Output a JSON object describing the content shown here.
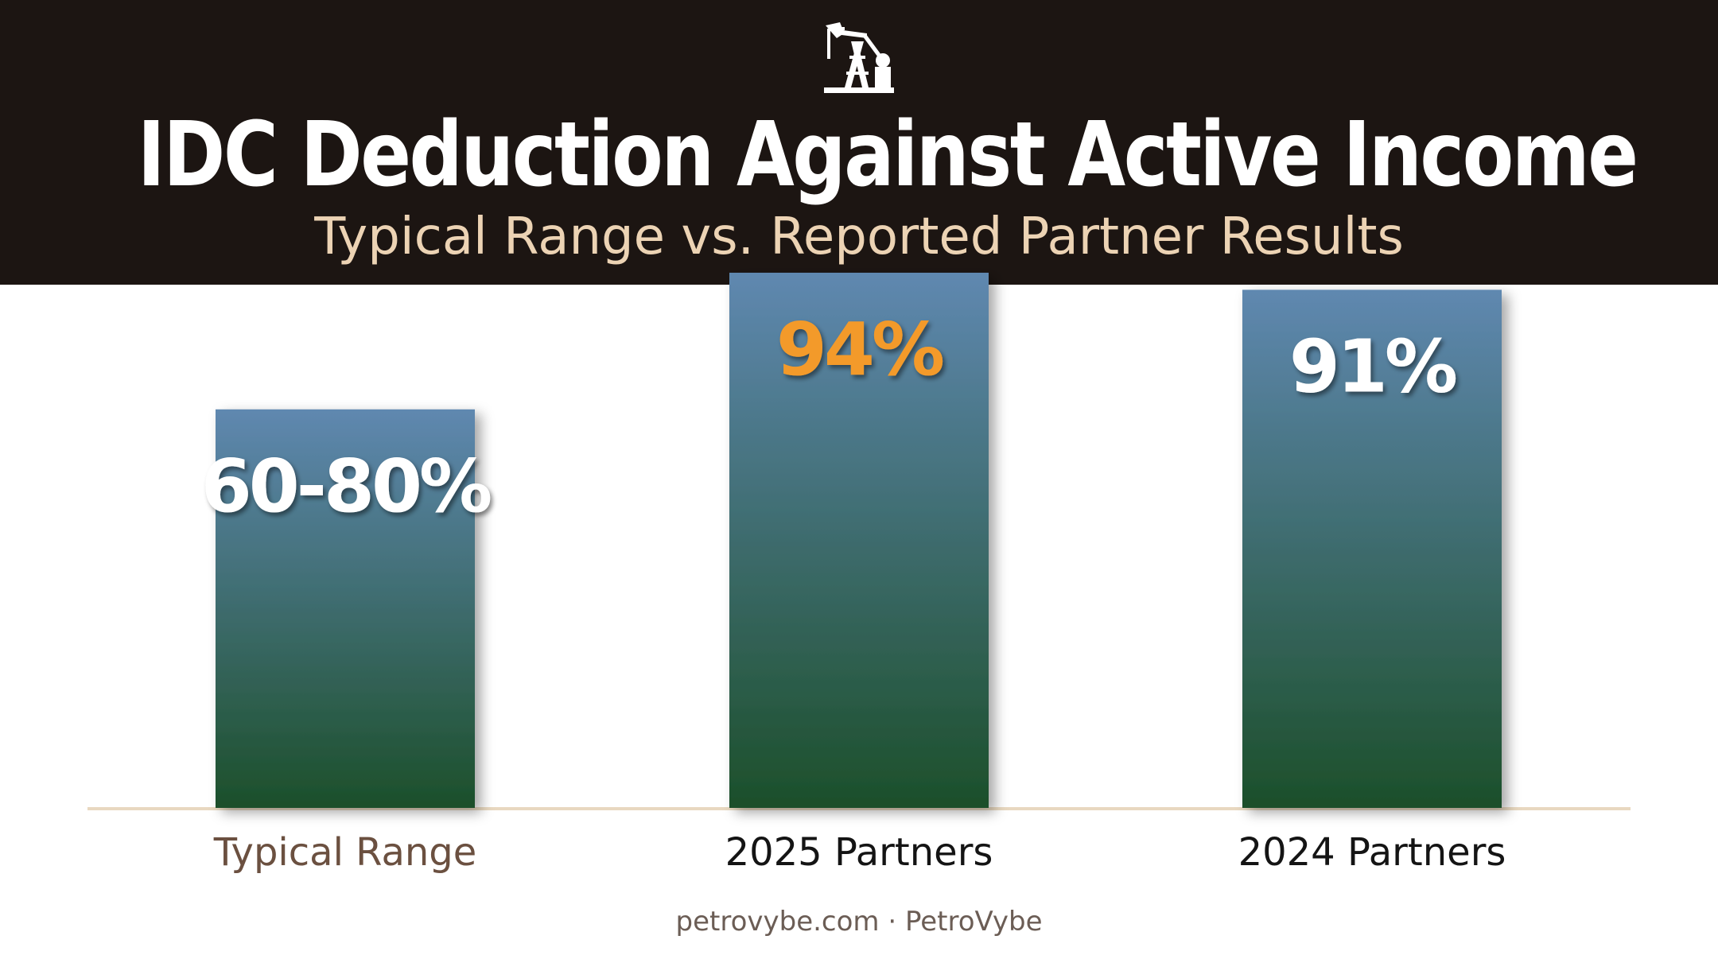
{
  "header": {
    "icon": "oil-pumpjack-icon",
    "title": "IDC Deduction Against Active Income",
    "subtitle": "Typical Range vs. Reported Partner Results"
  },
  "chart_data": {
    "type": "bar",
    "categories": [
      "Typical Range",
      "2025 Partners",
      "2024 Partners"
    ],
    "values": [
      70,
      94,
      91
    ],
    "value_labels": [
      "60-80%",
      "94%",
      "91%"
    ],
    "ylim": [
      0,
      100
    ],
    "grid": false,
    "colors": {
      "bar_top": "#5f88b0",
      "bar_bottom": "#1c4f2a",
      "label_default": "#ffffff",
      "label_highlight": "#f39a2a",
      "baseline": "#e8d8c0",
      "category_muted": "#6b5040",
      "category_default": "#141414"
    },
    "highlight_index": 1
  },
  "footer": {
    "text": "petrovybe.com · PetroVybe"
  }
}
